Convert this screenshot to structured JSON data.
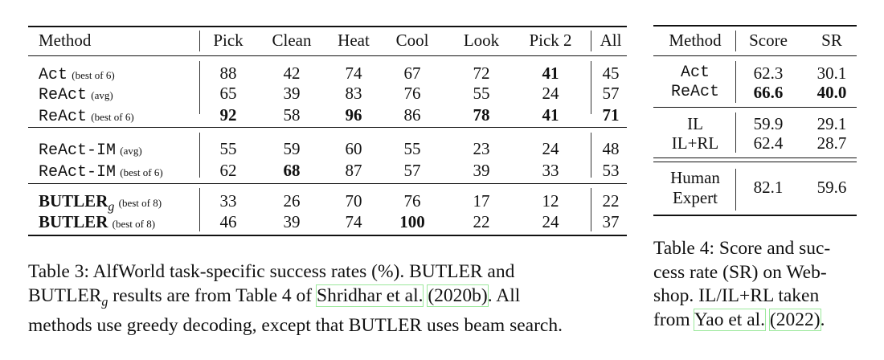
{
  "table3": {
    "columns": [
      "Method",
      "Pick",
      "Clean",
      "Heat",
      "Cool",
      "Look",
      "Pick 2",
      "All"
    ],
    "groups": [
      [
        {
          "method": "Act",
          "mono": true,
          "note": "(best of 6)",
          "values": [
            "88",
            "42",
            "74",
            "67",
            "72",
            "41",
            "45"
          ],
          "bold": [
            5
          ]
        },
        {
          "method": "ReAct",
          "mono": true,
          "note": "(avg)",
          "values": [
            "65",
            "39",
            "83",
            "76",
            "55",
            "24",
            "57"
          ],
          "bold": []
        },
        {
          "method": "ReAct",
          "mono": true,
          "note": "(best of 6)",
          "values": [
            "92",
            "58",
            "96",
            "86",
            "78",
            "41",
            "71"
          ],
          "bold": [
            0,
            2,
            4,
            5,
            6
          ]
        }
      ],
      [
        {
          "method": "ReAct-IM",
          "mono": true,
          "note": "(avg)",
          "values": [
            "55",
            "59",
            "60",
            "55",
            "23",
            "24",
            "48"
          ],
          "bold": []
        },
        {
          "method": "ReAct-IM",
          "mono": true,
          "note": "(best of 6)",
          "values": [
            "62",
            "68",
            "87",
            "57",
            "39",
            "33",
            "53"
          ],
          "bold": [
            1
          ]
        }
      ],
      [
        {
          "method": "BUTLER",
          "sub": "g",
          "mono": false,
          "note": "(best of 8)",
          "values": [
            "33",
            "26",
            "70",
            "76",
            "17",
            "12",
            "22"
          ],
          "bold": []
        },
        {
          "method": "BUTLER",
          "mono": false,
          "note": "(best of 8)",
          "values": [
            "46",
            "39",
            "74",
            "100",
            "22",
            "24",
            "37"
          ],
          "bold": [
            3
          ]
        }
      ]
    ],
    "caption": {
      "line1": "Table 3: AlfWorld task-specific success rates (%). BUTLER and",
      "line2_pre": "BUTLER",
      "line2_sub": "g",
      "line2_mid": " results are from Table 4 of ",
      "line2_cite": "Shridhar et al.",
      "line2_year": "(2020b)",
      "line2_post": ". All",
      "line3": "methods use greedy decoding, except that BUTLER uses beam search."
    }
  },
  "table4": {
    "columns": [
      "Method",
      "Score",
      "SR"
    ],
    "rows": [
      {
        "method": "Act",
        "mono": true,
        "values": [
          "62.3",
          "30.1"
        ],
        "bold": []
      },
      {
        "method": "ReAct",
        "mono": true,
        "values": [
          "66.6",
          "40.0"
        ],
        "bold": [
          0,
          1
        ]
      },
      {
        "method": "IL",
        "mono": false,
        "values": [
          "59.9",
          "29.1"
        ],
        "bold": []
      },
      {
        "method": "IL+RL",
        "mono": false,
        "values": [
          "62.4",
          "28.7"
        ],
        "bold": []
      },
      {
        "method": "Human",
        "method2": "Expert",
        "mono": false,
        "values": [
          "82.1",
          "59.6"
        ],
        "bold": []
      }
    ],
    "caption": {
      "line1": "Table 4: Score and suc-",
      "line2": "cess rate (SR) on Web-",
      "line3": "shop. IL/IL+RL taken",
      "line4_pre": "from ",
      "line4_cite": "Yao et al.",
      "line4_year": "(2022)",
      "line4_post": "."
    }
  },
  "colors": {
    "citation_box": "#9be89b"
  }
}
